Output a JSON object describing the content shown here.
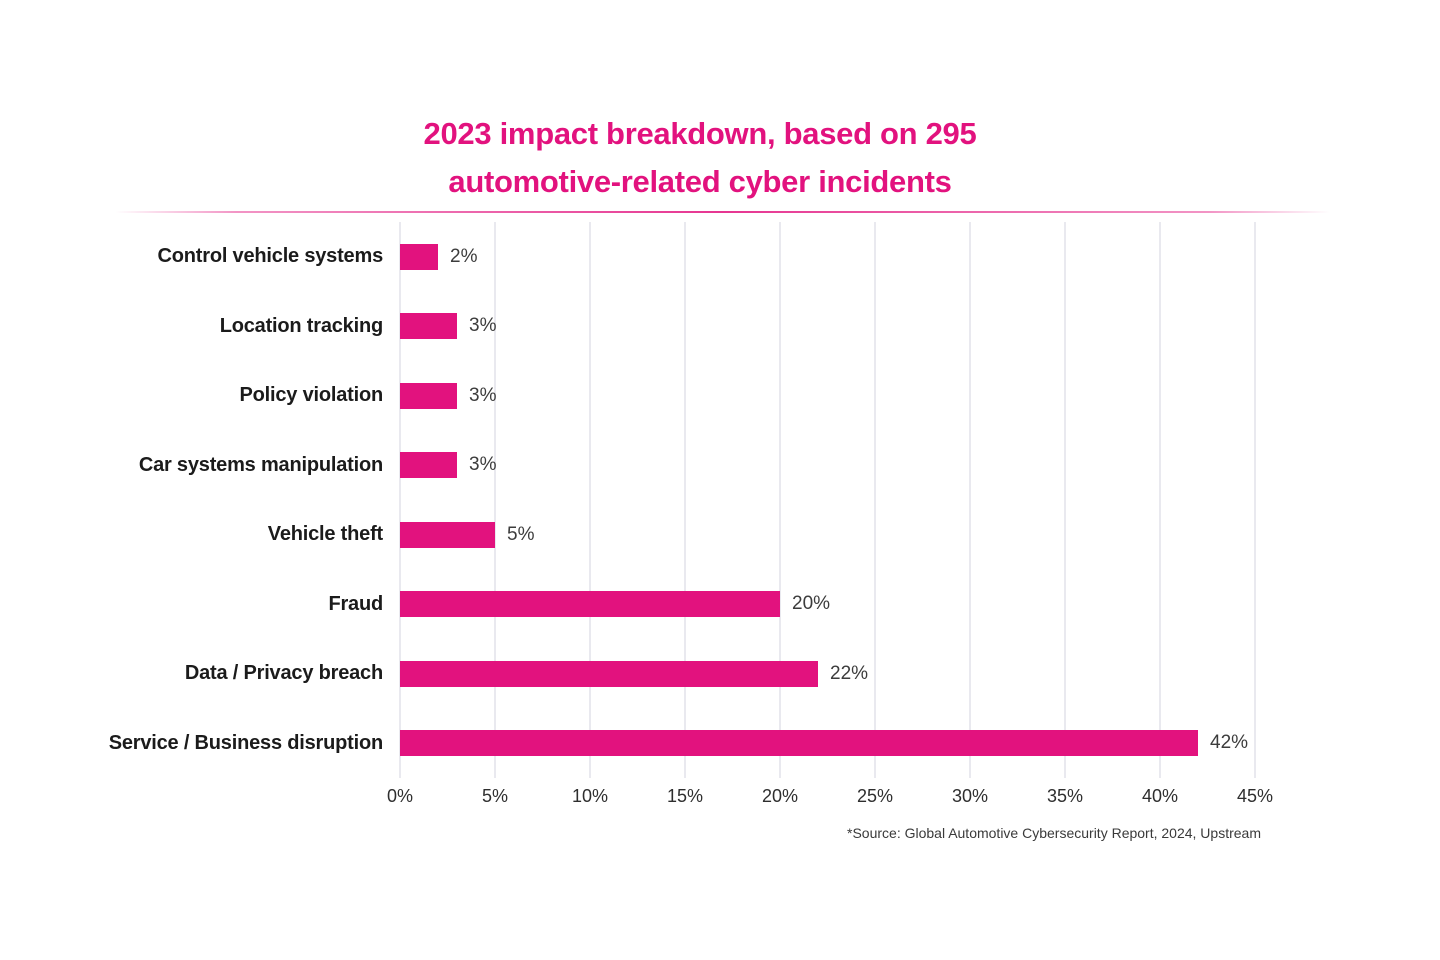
{
  "chart_data": {
    "type": "bar",
    "orientation": "horizontal",
    "title_lines": [
      "2023 impact breakdown, based on 295",
      "automotive-related cyber incidents"
    ],
    "categories": [
      "Control vehicle systems",
      "Location tracking",
      "Policy violation",
      "Car systems manipulation",
      "Vehicle theft",
      "Fraud",
      "Data / Privacy breach",
      "Service / Business disruption"
    ],
    "values": [
      2,
      3,
      3,
      3,
      5,
      20,
      22,
      42
    ],
    "value_labels": [
      "2%",
      "3%",
      "3%",
      "3%",
      "5%",
      "20%",
      "22%",
      "42%"
    ],
    "x_ticks": [
      "0%",
      "5%",
      "10%",
      "15%",
      "20%",
      "25%",
      "30%",
      "35%",
      "40%",
      "45%"
    ],
    "xlim": [
      0,
      45
    ],
    "grid": "vertical",
    "legend": "none",
    "source_note": "*Source: Global Automotive Cybersecurity Report, 2024, Upstream",
    "colors": {
      "bar": "#e2127e",
      "title": "#e2127e",
      "category_label": "#1b1b1b",
      "value_label": "#3c3c3c",
      "tick_label": "#2e2e2e",
      "source": "#3a3a3a",
      "gridline": "#e9e9ef"
    }
  }
}
